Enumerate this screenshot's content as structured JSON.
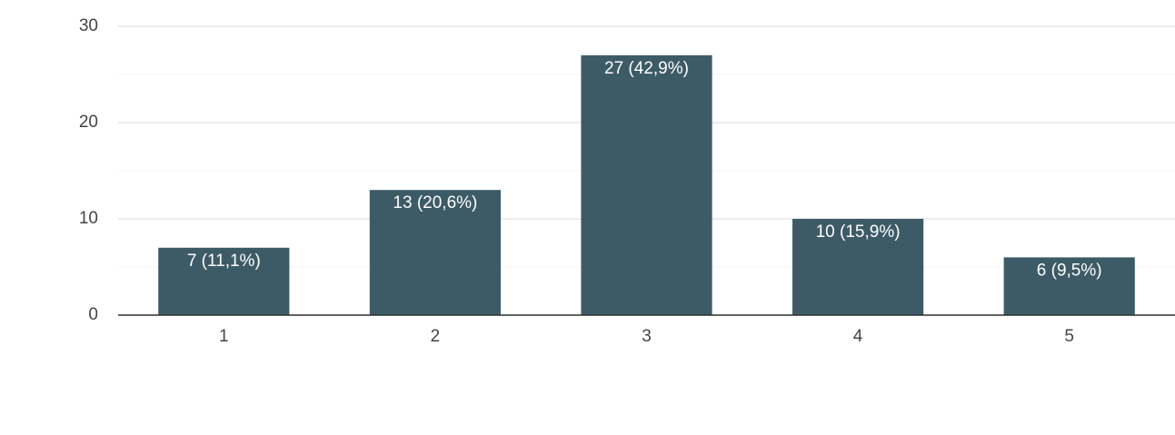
{
  "chart_data": {
    "type": "bar",
    "categories": [
      "1",
      "2",
      "3",
      "4",
      "5"
    ],
    "values": [
      7,
      13,
      27,
      10,
      6
    ],
    "value_labels": [
      "7 (11,1%)",
      "13 (20,6%)",
      "27 (42,9%)",
      "10 (15,9%)",
      "6 (9,5%)"
    ],
    "color": "#3d5b66",
    "ylim": [
      0,
      30
    ],
    "yticks": [
      0,
      10,
      20,
      30
    ],
    "minor_yticks": [
      5,
      15,
      25
    ],
    "grid": true
  }
}
